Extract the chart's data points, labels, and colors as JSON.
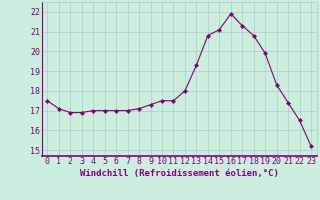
{
  "x": [
    0,
    1,
    2,
    3,
    4,
    5,
    6,
    7,
    8,
    9,
    10,
    11,
    12,
    13,
    14,
    15,
    16,
    17,
    18,
    19,
    20,
    21,
    22,
    23
  ],
  "y": [
    17.5,
    17.1,
    16.9,
    16.9,
    17.0,
    17.0,
    17.0,
    17.0,
    17.1,
    17.3,
    17.5,
    17.5,
    18.0,
    19.3,
    20.8,
    21.1,
    21.9,
    21.3,
    20.8,
    19.9,
    18.3,
    17.4,
    16.5,
    15.2
  ],
  "line_color": "#800080",
  "marker": "D",
  "marker_size": 2.0,
  "bg_color": "#cceedd",
  "grid_color": "#aacccc",
  "xlabel": "Windchill (Refroidissement éolien,°C)",
  "ylabel_ticks": [
    15,
    16,
    17,
    18,
    19,
    20,
    21,
    22
  ],
  "ylim": [
    14.7,
    22.5
  ],
  "xlim": [
    -0.5,
    23.5
  ],
  "xlabel_fontsize": 6.5,
  "tick_fontsize": 6,
  "tick_color": "#800080",
  "label_color": "#800080"
}
